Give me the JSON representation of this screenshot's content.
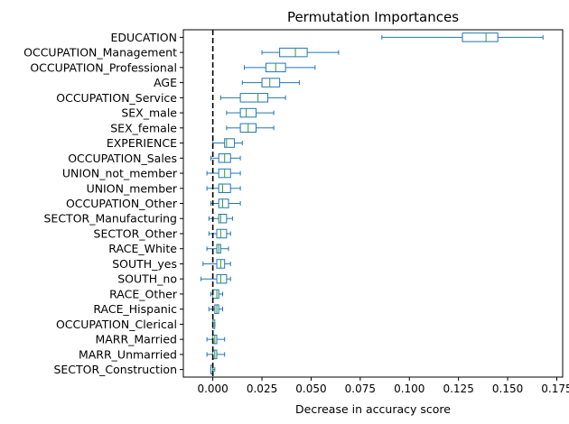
{
  "chart_data": {
    "type": "boxplot",
    "orientation": "horizontal",
    "title": "Permutation Importances",
    "xlabel": "Decrease in accuracy score",
    "ylabel": "",
    "xlim": [
      -0.015,
      0.178
    ],
    "xticks": [
      0.0,
      0.025,
      0.05,
      0.075,
      0.1,
      0.125,
      0.15,
      0.175
    ],
    "xtick_labels": [
      "0.000",
      "0.025",
      "0.050",
      "0.075",
      "0.100",
      "0.125",
      "0.150",
      "0.175"
    ],
    "reference_line": {
      "x": 0.0,
      "style": "dashed",
      "color": "#000000"
    },
    "box_color": "#1f77b4",
    "median_color": "#2ca02c",
    "grid": false,
    "legend": "none",
    "categories": [
      "EDUCATION",
      "OCCUPATION_Management",
      "OCCUPATION_Professional",
      "AGE",
      "OCCUPATION_Service",
      "SEX_male",
      "SEX_female",
      "EXPERIENCE",
      "OCCUPATION_Sales",
      "UNION_not_member",
      "UNION_member",
      "OCCUPATION_Other",
      "SECTOR_Manufacturing",
      "SECTOR_Other",
      "RACE_White",
      "SOUTH_yes",
      "SOUTH_no",
      "RACE_Other",
      "RACE_Hispanic",
      "OCCUPATION_Clerical",
      "MARR_Married",
      "MARR_Unmarried",
      "SECTOR_Construction"
    ],
    "boxes": [
      {
        "min": 0.086,
        "q1": 0.127,
        "median": 0.139,
        "q3": 0.145,
        "max": 0.168
      },
      {
        "min": 0.025,
        "q1": 0.034,
        "median": 0.042,
        "q3": 0.048,
        "max": 0.064
      },
      {
        "min": 0.016,
        "q1": 0.027,
        "median": 0.032,
        "q3": 0.037,
        "max": 0.052
      },
      {
        "min": 0.015,
        "q1": 0.025,
        "median": 0.029,
        "q3": 0.034,
        "max": 0.044
      },
      {
        "min": 0.004,
        "q1": 0.014,
        "median": 0.023,
        "q3": 0.028,
        "max": 0.037
      },
      {
        "min": 0.007,
        "q1": 0.014,
        "median": 0.017,
        "q3": 0.022,
        "max": 0.031
      },
      {
        "min": 0.007,
        "q1": 0.014,
        "median": 0.018,
        "q3": 0.022,
        "max": 0.031
      },
      {
        "min": 0.0,
        "q1": 0.006,
        "median": 0.007,
        "q3": 0.011,
        "max": 0.015
      },
      {
        "min": -0.001,
        "q1": 0.003,
        "median": 0.006,
        "q3": 0.009,
        "max": 0.014
      },
      {
        "min": -0.003,
        "q1": 0.003,
        "median": 0.006,
        "q3": 0.009,
        "max": 0.014
      },
      {
        "min": -0.003,
        "q1": 0.003,
        "median": 0.005,
        "q3": 0.009,
        "max": 0.014
      },
      {
        "min": -0.001,
        "q1": 0.003,
        "median": 0.005,
        "q3": 0.008,
        "max": 0.014
      },
      {
        "min": -0.002,
        "q1": 0.003,
        "median": 0.004,
        "q3": 0.007,
        "max": 0.01
      },
      {
        "min": -0.002,
        "q1": 0.002,
        "median": 0.004,
        "q3": 0.007,
        "max": 0.009
      },
      {
        "min": -0.003,
        "q1": 0.002,
        "median": 0.003,
        "q3": 0.004,
        "max": 0.008
      },
      {
        "min": -0.005,
        "q1": 0.002,
        "median": 0.004,
        "q3": 0.006,
        "max": 0.009
      },
      {
        "min": -0.006,
        "q1": 0.002,
        "median": 0.004,
        "q3": 0.007,
        "max": 0.009
      },
      {
        "min": -0.001,
        "q1": 0.0,
        "median": 0.002,
        "q3": 0.003,
        "max": 0.005
      },
      {
        "min": -0.002,
        "q1": 0.001,
        "median": 0.002,
        "q3": 0.003,
        "max": 0.005
      },
      {
        "min": 0.0,
        "q1": 0.0,
        "median": 0.0,
        "q3": 0.001,
        "max": 0.001
      },
      {
        "min": -0.003,
        "q1": 0.0,
        "median": 0.001,
        "q3": 0.002,
        "max": 0.006
      },
      {
        "min": -0.003,
        "q1": 0.0,
        "median": 0.001,
        "q3": 0.002,
        "max": 0.006
      },
      {
        "min": -0.001,
        "q1": -0.001,
        "median": 0.0,
        "q3": 0.0,
        "max": 0.001
      }
    ]
  }
}
